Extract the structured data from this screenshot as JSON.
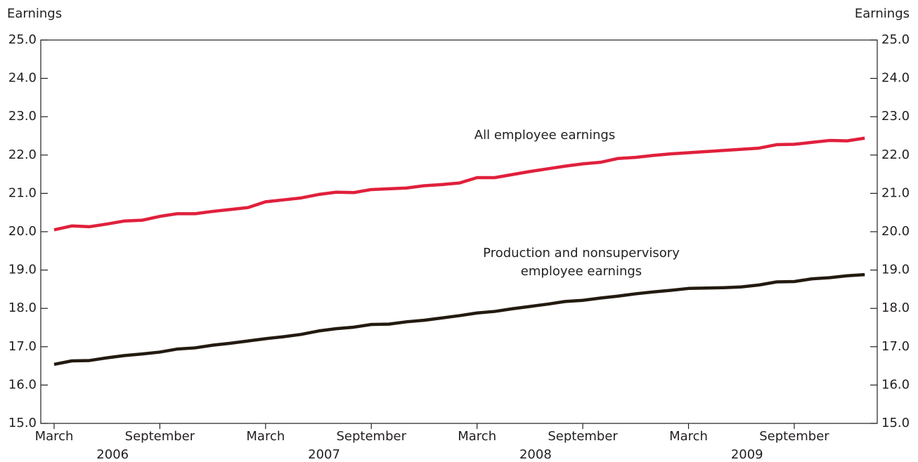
{
  "chart_data": {
    "type": "line",
    "y_axis_label": "Earnings",
    "y2_axis_label": "Earnings",
    "x": [
      "2006-03",
      "2006-04",
      "2006-05",
      "2006-06",
      "2006-07",
      "2006-08",
      "2006-09",
      "2006-10",
      "2006-11",
      "2006-12",
      "2007-01",
      "2007-02",
      "2007-03",
      "2007-04",
      "2007-05",
      "2007-06",
      "2007-07",
      "2007-08",
      "2007-09",
      "2007-10",
      "2007-11",
      "2007-12",
      "2008-01",
      "2008-02",
      "2008-03",
      "2008-04",
      "2008-05",
      "2008-06",
      "2008-07",
      "2008-08",
      "2008-09",
      "2008-10",
      "2008-11",
      "2008-12",
      "2009-01",
      "2009-02",
      "2009-03",
      "2009-04",
      "2009-05",
      "2009-06",
      "2009-07",
      "2009-08",
      "2009-09",
      "2009-10",
      "2009-11",
      "2009-12",
      "2010-01"
    ],
    "xticks": [
      {
        "value": "2006-03",
        "label": "March"
      },
      {
        "value": "2006-09",
        "label": "September"
      },
      {
        "value": "2007-03",
        "label": "March"
      },
      {
        "value": "2007-09",
        "label": "September"
      },
      {
        "value": "2008-03",
        "label": "March"
      },
      {
        "value": "2008-09",
        "label": "September"
      },
      {
        "value": "2009-03",
        "label": "March"
      },
      {
        "value": "2009-09",
        "label": "September"
      }
    ],
    "years": [
      "2006",
      "2007",
      "2008",
      "2009"
    ],
    "series": [
      {
        "name": "All employee earnings",
        "color": "#e0203c",
        "values": [
          20.05,
          20.15,
          20.13,
          20.2,
          20.28,
          20.3,
          20.4,
          20.47,
          20.47,
          20.53,
          20.58,
          20.63,
          20.78,
          20.83,
          20.88,
          20.97,
          21.03,
          21.02,
          21.1,
          21.12,
          21.14,
          21.2,
          21.23,
          21.27,
          21.41,
          21.41,
          21.49,
          21.57,
          21.64,
          21.71,
          21.77,
          21.81,
          21.91,
          21.94,
          21.99,
          22.03,
          22.06,
          22.09,
          22.12,
          22.15,
          22.18,
          22.27,
          22.28,
          22.33,
          22.38,
          22.37,
          22.44
        ]
      },
      {
        "name": "Production and nonsupervisory employee earnings",
        "color": "#231a10",
        "values": [
          16.54,
          16.63,
          16.64,
          16.71,
          16.77,
          16.81,
          16.86,
          16.94,
          16.97,
          17.04,
          17.09,
          17.15,
          17.21,
          17.26,
          17.32,
          17.41,
          17.47,
          17.51,
          17.58,
          17.59,
          17.65,
          17.69,
          17.75,
          17.81,
          17.88,
          17.92,
          17.99,
          18.05,
          18.11,
          18.18,
          18.21,
          18.27,
          18.32,
          18.38,
          18.43,
          18.47,
          18.52,
          18.53,
          18.54,
          18.56,
          18.61,
          18.69,
          18.7,
          18.77,
          18.8,
          18.85,
          18.88
        ]
      }
    ],
    "ylim": [
      15,
      25
    ],
    "yticks": [
      {
        "value": 15,
        "label": "15.0"
      },
      {
        "value": 16,
        "label": "16.0"
      },
      {
        "value": 17,
        "label": "17.0"
      },
      {
        "value": 18,
        "label": "18.0"
      },
      {
        "value": 19,
        "label": "19.0"
      },
      {
        "value": 20,
        "label": "20.0"
      },
      {
        "value": 21,
        "label": "21.0"
      },
      {
        "value": 22,
        "label": "22.0"
      },
      {
        "value": 23,
        "label": "23.0"
      },
      {
        "value": 24,
        "label": "24.0"
      },
      {
        "value": 25,
        "label": "25.0"
      }
    ],
    "y2lim": [
      15,
      25
    ],
    "y2ticks": [
      {
        "value": 15,
        "label": "15.0"
      },
      {
        "value": 16,
        "label": "16.0"
      },
      {
        "value": 17,
        "label": "17.0"
      },
      {
        "value": 18,
        "label": "18.0"
      },
      {
        "value": 19,
        "label": "19.0"
      },
      {
        "value": 20,
        "label": "20.0"
      },
      {
        "value": 21,
        "label": "21.0"
      },
      {
        "value": 22,
        "label": "22.0"
      },
      {
        "value": 23,
        "label": "23.0"
      },
      {
        "value": 24,
        "label": "24.0"
      },
      {
        "value": 25,
        "label": "25.0"
      }
    ]
  }
}
